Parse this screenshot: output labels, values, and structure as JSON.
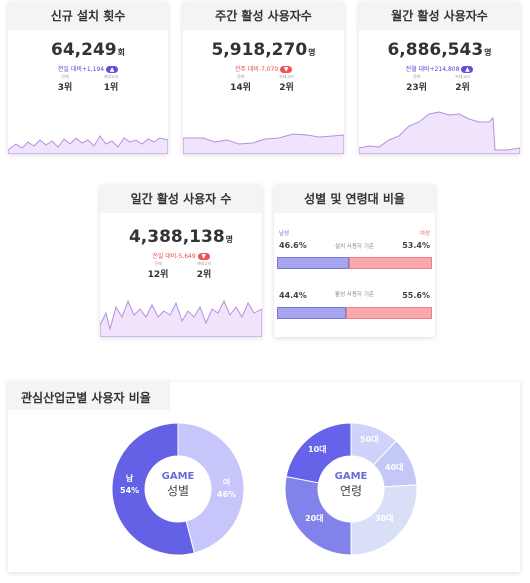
{
  "cards": [
    {
      "title": "신규 설치 횟수",
      "value": "64,249",
      "unit": "회",
      "delta_label": "전일 대비",
      "delta": "+1,194",
      "direction": "up",
      "rank_total_label": "전체",
      "rank_total": "3위",
      "rank_cat_label": "카테고리",
      "rank_cat": "1위"
    },
    {
      "title": "주간 활성 사용자수",
      "value": "5,918,270",
      "unit": "명",
      "delta_label": "전주 대비",
      "delta": "-7,070",
      "direction": "down",
      "rank_total_label": "전체",
      "rank_total": "14위",
      "rank_cat_label": "카테고리",
      "rank_cat": "2위"
    },
    {
      "title": "월간 활성 사용자수",
      "value": "6,886,543",
      "unit": "명",
      "delta_label": "전월 대비",
      "delta": "+214,808",
      "direction": "up",
      "rank_total_label": "전체",
      "rank_total": "23위",
      "rank_cat_label": "카테고리",
      "rank_cat": "2위"
    },
    {
      "title": "일간 활성 사용자 수",
      "value": "4,388,138",
      "unit": "명",
      "delta_label": "전일 대비",
      "delta": "-5,649",
      "direction": "down",
      "rank_total_label": "전체",
      "rank_total": "12위",
      "rank_cat_label": "카테고리",
      "rank_cat": "2위"
    }
  ],
  "gender_age": {
    "title": "성별 및 연령대 비율",
    "male_label": "남성",
    "female_label": "여성",
    "install": {
      "label": "설치 사용자 기준",
      "male": "46.6%",
      "female": "53.4%",
      "male_frac": 0.466
    },
    "active": {
      "label": "활성 사용자 기준",
      "male": "44.4%",
      "female": "55.6%",
      "male_frac": 0.444
    }
  },
  "interest": {
    "title": "관심산업군별 사용자 비율",
    "gender_donut": {
      "center_top": "GAME",
      "center_bottom": "성별",
      "segments": [
        {
          "label": "남",
          "value": "54%",
          "frac": 0.54,
          "color": "#6461e6"
        },
        {
          "label": "여",
          "value": "46%",
          "frac": 0.46,
          "color": "#c7c6fb"
        }
      ]
    },
    "age_donut": {
      "center_top": "GAME",
      "center_bottom": "연령",
      "segments": [
        {
          "label": "50대",
          "frac": 0.12,
          "color": "#cfd3fa"
        },
        {
          "label": "40대",
          "frac": 0.12,
          "color": "#c3c8f7"
        },
        {
          "label": "30대",
          "frac": 0.26,
          "color": "#dadff8"
        },
        {
          "label": "20대",
          "frac": 0.28,
          "color": "#8182ea"
        },
        {
          "label": "10대",
          "frac": 0.22,
          "color": "#6762ea"
        }
      ]
    }
  },
  "colors": {
    "accent": "#6a4be0",
    "down": "#ee5353",
    "spark_fill": "#efe4fb",
    "spark_line": "#b78ee4"
  }
}
